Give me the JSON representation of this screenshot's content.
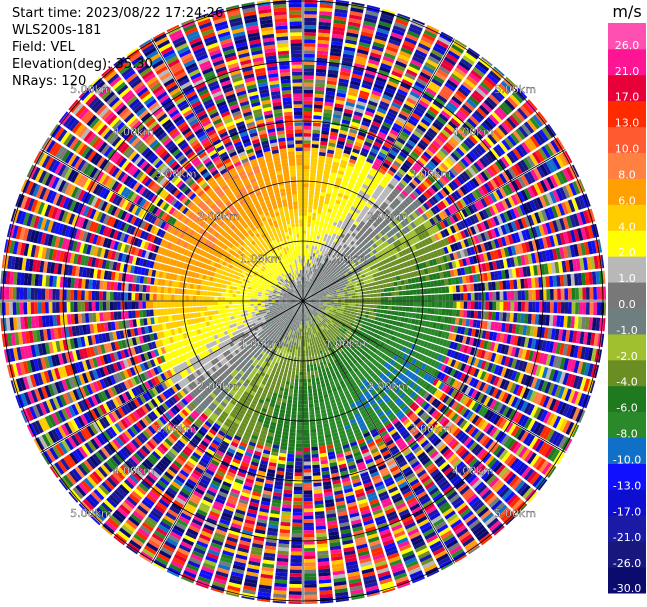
{
  "header": {
    "start_time": "Start time: 2023/08/22 17:24:26",
    "instrument": "WLS200s-181",
    "field": "Field: VEL",
    "elevation": "Elevation(deg): 35.30",
    "nrays": "NRays: 120"
  },
  "chart_data": {
    "type": "heatmap",
    "projection": "polar-ppi",
    "field": "VEL",
    "units": "m/s",
    "n_rays": 120,
    "elevation_deg": 35.3,
    "range_rings_km": [
      1.0,
      2.0,
      3.0,
      4.0,
      5.0
    ],
    "range_ring_labels": [
      "1.00km",
      "2.00km",
      "3.00km",
      "4.00km",
      "5.00km"
    ],
    "clean_signal_range_km": 2.6,
    "max_range_km": 5.05,
    "wind_pattern": {
      "description": "receding (positive) velocities toward north-west, approaching (negative) toward south-east, noise beyond ~2.6 km",
      "max_abs_velocity_ms": 8
    },
    "colorbar": {
      "boundaries": [
        -30.0,
        -26.0,
        -21.0,
        -17.0,
        -13.0,
        -10.0,
        -8.0,
        -6.0,
        -4.0,
        -2.0,
        -1.0,
        0.0,
        1.0,
        2.0,
        4.0,
        6.0,
        8.0,
        10.0,
        13.0,
        17.0,
        21.0,
        26.0
      ],
      "colors": [
        "#0b0b6e",
        "#17177e",
        "#1a1aa6",
        "#0e0ed0",
        "#1010ff",
        "#1070c8",
        "#2a8a2a",
        "#1f7a1f",
        "#6b8e23",
        "#a0c030",
        "#6f7f7f",
        "#787878",
        "#b8b8b8",
        "#ffff00",
        "#ffcc00",
        "#ffa000",
        "#ff8040",
        "#ff5a30",
        "#ff2a00",
        "#e8003a",
        "#ff1493",
        "#ff4fb0"
      ],
      "tick_labels": [
        "-30.0",
        "-26.0",
        "-21.0",
        "-17.0",
        "-13.0",
        "-10.0",
        "-8.0",
        "-6.0",
        "-4.0",
        "-2.0",
        "-1.0",
        "0.0",
        "1.0",
        "2.0",
        "4.0",
        "6.0",
        "8.0",
        "10.0",
        "13.0",
        "17.0",
        "21.0",
        "26.0"
      ],
      "unit_label": "m/s"
    }
  }
}
